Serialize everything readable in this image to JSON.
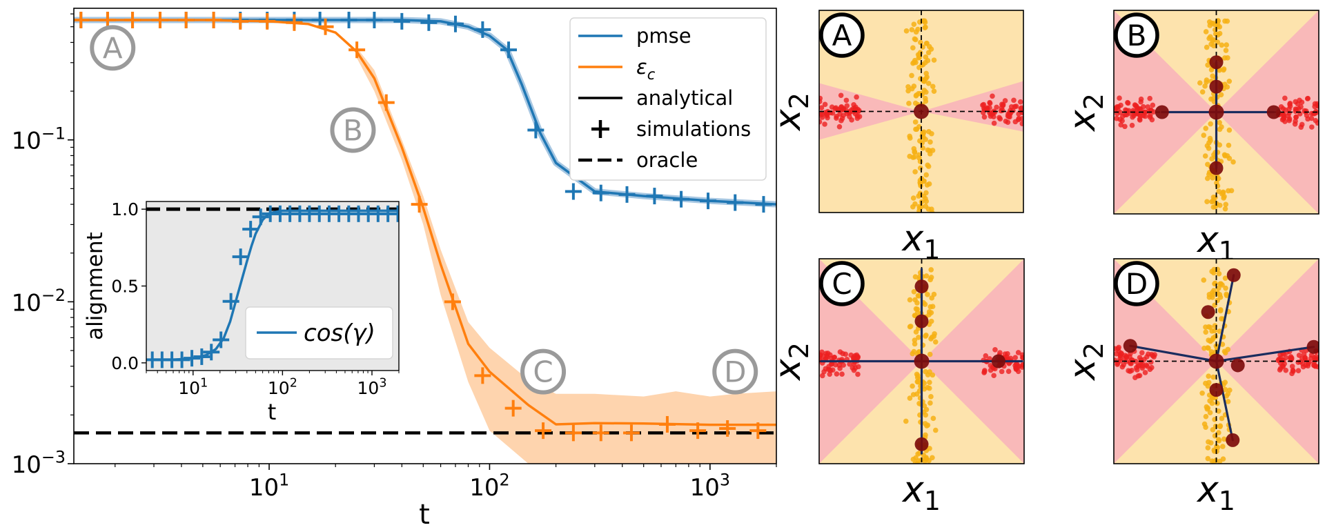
{
  "colors": {
    "pmse": "#1f77b4",
    "eps": "#ff7f0e",
    "eps_band": "#fdc593",
    "oracle": "#000000",
    "inset_bg": "#e8e8e8",
    "marker_circle": "#9a9a9a",
    "panel_pink": "#f9b9b9",
    "panel_yellow": "#fde3ad",
    "red_points": "#ec2020",
    "yellow_points": "#f6b014",
    "centroid": "#7d0c0c",
    "trajectory": "#1a2c5e"
  },
  "chart_data": [
    {
      "type": "line",
      "xscale": "log",
      "yscale": "log",
      "xlim": [
        1.3,
        2000
      ],
      "ylim": [
        0.001,
        0.65
      ],
      "xlabel": "t",
      "ylabel": "",
      "xticks": [
        {
          "value": 10,
          "base": "10",
          "exp": "1"
        },
        {
          "value": 100,
          "base": "10",
          "exp": "2"
        },
        {
          "value": 1000,
          "base": "10",
          "exp": "3"
        }
      ],
      "yticks": [
        {
          "value": 0.001,
          "base": "10",
          "exp": "−3"
        },
        {
          "value": 0.01,
          "base": "10",
          "exp": "−2"
        },
        {
          "value": 0.1,
          "base": "10",
          "exp": "−1"
        }
      ],
      "legend_position": "top-right",
      "legend": [
        {
          "label": "pmse",
          "style": "pmse-line"
        },
        {
          "label": "ε",
          "sub": "c",
          "style": "eps-line"
        },
        {
          "label": "analytical",
          "style": "black-line"
        },
        {
          "label": "simulations",
          "style": "plus"
        },
        {
          "label": "oracle",
          "style": "dashed"
        }
      ],
      "series": [
        {
          "name": "pmse",
          "x": [
            1.3,
            5,
            10,
            20,
            40,
            60,
            80,
            100,
            120,
            140,
            170,
            200,
            300,
            500,
            1000,
            2000
          ],
          "y": [
            0.55,
            0.55,
            0.55,
            0.55,
            0.55,
            0.54,
            0.5,
            0.44,
            0.36,
            0.22,
            0.11,
            0.072,
            0.048,
            0.045,
            0.042,
            0.04
          ]
        },
        {
          "name": "pmse simulations",
          "x": [
            1.4,
            1.85,
            2.4,
            3.2,
            4.2,
            5.6,
            7.4,
            9.8,
            13,
            17,
            23,
            30,
            40,
            53,
            70,
            93,
            122,
            162,
            240,
            320,
            420,
            560,
            740,
            980,
            1300,
            1750
          ],
          "y": [
            0.55,
            0.55,
            0.55,
            0.55,
            0.55,
            0.55,
            0.55,
            0.55,
            0.55,
            0.55,
            0.55,
            0.55,
            0.54,
            0.53,
            0.52,
            0.48,
            0.36,
            0.115,
            0.048,
            0.047,
            0.046,
            0.045,
            0.043,
            0.042,
            0.041,
            0.04
          ]
        },
        {
          "name": "εc",
          "x": [
            1.3,
            5,
            10,
            15,
            20,
            25,
            30,
            40,
            50,
            60,
            80,
            100,
            150,
            200,
            300,
            500,
            1000,
            2000
          ],
          "y": [
            0.55,
            0.55,
            0.54,
            0.52,
            0.46,
            0.35,
            0.24,
            0.09,
            0.038,
            0.017,
            0.0055,
            0.0037,
            0.0023,
            0.00175,
            0.00178,
            0.00177,
            0.00174,
            0.00174
          ]
        },
        {
          "name": "εc simulations",
          "x": [
            1.4,
            1.85,
            2.4,
            3.2,
            4.2,
            5.6,
            7.4,
            9.8,
            13,
            18,
            25,
            34,
            48,
            68,
            93,
            128,
            175,
            240,
            320,
            440,
            640,
            880,
            1200,
            1650
          ],
          "y": [
            0.55,
            0.55,
            0.55,
            0.55,
            0.55,
            0.55,
            0.54,
            0.54,
            0.53,
            0.5,
            0.36,
            0.17,
            0.04,
            0.01,
            0.0035,
            0.0022,
            0.0016,
            0.00155,
            0.00155,
            0.00155,
            0.00175,
            0.0016,
            0.00165,
            0.0016
          ]
        },
        {
          "name": "εc band",
          "x": [
            25,
            30,
            40,
            50,
            60,
            80,
            100,
            150,
            200,
            300,
            500,
            700,
            1000,
            1300,
            2000
          ],
          "lower": [
            0.32,
            0.2,
            0.075,
            0.03,
            0.011,
            0.0032,
            0.0016,
            0.001,
            0.001,
            0.001,
            0.001,
            0.001,
            0.001,
            0.001,
            0.001
          ],
          "upper": [
            0.37,
            0.27,
            0.1,
            0.045,
            0.021,
            0.0075,
            0.0052,
            0.0033,
            0.0027,
            0.0027,
            0.0026,
            0.0028,
            0.0026,
            0.0027,
            0.0028
          ]
        },
        {
          "name": "oracle",
          "x": [
            1.3,
            2000
          ],
          "y": [
            0.00155,
            0.00155
          ]
        }
      ],
      "annotations": [
        {
          "text": "A",
          "x": 1.95,
          "y": 0.37
        },
        {
          "text": "B",
          "x": 24,
          "y": 0.115
        },
        {
          "text": "C",
          "x": 175,
          "y": 0.0037
        },
        {
          "text": "D",
          "x": 1300,
          "y": 0.0037
        }
      ]
    },
    {
      "type": "line",
      "xscale": "log",
      "xlim": [
        3,
        2000
      ],
      "ylim": [
        -0.05,
        1.05
      ],
      "xlabel": "t",
      "ylabel": "alignment",
      "xticks": [
        {
          "value": 10,
          "base": "10",
          "exp": "1"
        },
        {
          "value": 100,
          "base": "10",
          "exp": "2"
        },
        {
          "value": 1000,
          "base": "10",
          "exp": "3"
        }
      ],
      "yticks": [
        {
          "value": 0,
          "label": "0.0"
        },
        {
          "value": 0.5,
          "label": "0.5"
        },
        {
          "value": 1,
          "label": "1.0"
        }
      ],
      "legend_position": "bottom-right",
      "legend": [
        {
          "label": "cos(γ)"
        }
      ],
      "series": [
        {
          "name": "cos(γ)",
          "x": [
            3,
            6,
            10,
            14,
            18,
            22,
            26,
            30,
            35,
            40,
            45,
            50,
            60,
            70,
            80,
            100,
            200,
            500,
            2000
          ],
          "y": [
            0.02,
            0.02,
            0.03,
            0.05,
            0.09,
            0.16,
            0.27,
            0.4,
            0.54,
            0.66,
            0.76,
            0.84,
            0.93,
            0.97,
            0.98,
            0.99,
            0.99,
            0.99,
            0.99
          ]
        },
        {
          "name": "cos(γ) simulations",
          "x": [
            3.5,
            4.5,
            5.8,
            7.5,
            9.7,
            12.5,
            16,
            20.5,
            26.5,
            34,
            44,
            57,
            73,
            94,
            121,
            156,
            200,
            258,
            332,
            427,
            550,
            707,
            910,
            1170,
            1510,
            1950
          ],
          "y": [
            0.02,
            0.02,
            0.02,
            0.02,
            0.03,
            0.04,
            0.07,
            0.15,
            0.4,
            0.69,
            0.87,
            0.95,
            0.97,
            0.97,
            0.97,
            0.97,
            0.97,
            0.97,
            0.97,
            0.97,
            0.97,
            0.97,
            0.97,
            0.97,
            0.97,
            0.97
          ]
        },
        {
          "name": "oracle",
          "x": [
            3,
            2000
          ],
          "y": [
            1.0,
            1.0
          ]
        }
      ]
    },
    {
      "type": "scatter",
      "panels": [
        {
          "label": "A",
          "xlabel": "x",
          "xlabel_sub": "1",
          "ylabel": "x",
          "ylabel_sub": "2",
          "centroids": [
            [
              0,
              0
            ]
          ],
          "arms": []
        },
        {
          "label": "B",
          "xlabel": "x",
          "xlabel_sub": "1",
          "ylabel": "x",
          "ylabel_sub": "2",
          "centroids": [
            [
              -0.53,
              0
            ],
            [
              0,
              0
            ],
            [
              0.56,
              0
            ],
            [
              0,
              0.49
            ],
            [
              0,
              0.25
            ],
            [
              0,
              -0.55
            ]
          ],
          "arms": [
            [
              -0.53,
              0
            ],
            [
              0.56,
              0
            ],
            [
              0,
              0.49
            ],
            [
              0,
              -0.55
            ]
          ]
        },
        {
          "label": "C",
          "xlabel": "x",
          "xlabel_sub": "1",
          "ylabel": "x",
          "ylabel_sub": "2",
          "centroids": [
            [
              0.75,
              0
            ],
            [
              0,
              0
            ],
            [
              0,
              0.73
            ],
            [
              0,
              0.39
            ],
            [
              0,
              -0.81
            ]
          ],
          "arms": [
            [
              -0.98,
              0
            ],
            [
              0.98,
              0
            ],
            [
              0,
              0.9
            ],
            [
              0,
              -0.9
            ]
          ]
        },
        {
          "label": "D",
          "xlabel": "x",
          "xlabel_sub": "1",
          "ylabel": "x",
          "ylabel_sub": "2",
          "centroids": [
            [
              -0.84,
              0.15
            ],
            [
              0,
              0
            ],
            [
              0.21,
              -0.04
            ],
            [
              0,
              -0.28
            ],
            [
              0.95,
              0.14
            ],
            [
              -0.08,
              0.48
            ],
            [
              0.17,
              0.84
            ],
            [
              0.16,
              -0.77
            ]
          ],
          "arms": [
            [
              -0.84,
              0.15
            ],
            [
              0.95,
              0.14
            ],
            [
              0.17,
              0.84
            ],
            [
              0.16,
              -0.77
            ]
          ]
        }
      ]
    }
  ]
}
